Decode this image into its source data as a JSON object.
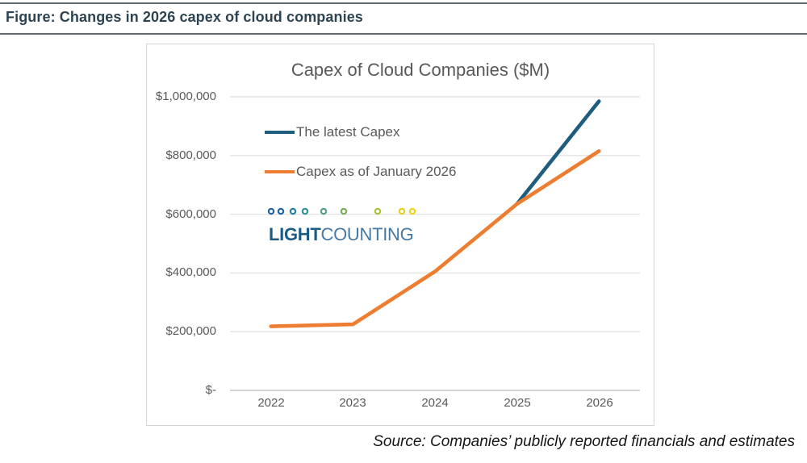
{
  "header": {
    "title": "Figure: Changes in 2026 capex of cloud companies"
  },
  "chart_data": {
    "type": "line",
    "title": "Capex of Cloud Companies ($M)",
    "categories": [
      "2022",
      "2023",
      "2024",
      "2025",
      "2026"
    ],
    "y_tick_labels": [
      "$1,000,000",
      "$800,000",
      "$600,000",
      "$400,000",
      "$200,000",
      "$-"
    ],
    "series": [
      {
        "name": "The latest Capex",
        "color": "#1e5d7d",
        "values": [
          null,
          null,
          null,
          635000,
          985000
        ]
      },
      {
        "name": "Capex as of January 2026",
        "color": "#ed7d31",
        "values": [
          218000,
          225000,
          405000,
          635000,
          815000
        ]
      }
    ],
    "xlabel": "",
    "ylabel": "",
    "ylim": [
      0,
      1000000
    ],
    "ytick_interval": 200000,
    "grid": "horizontal",
    "legend_position": "inside-top-left"
  },
  "logo": {
    "name": "LightCounting",
    "text_bold": "LIGHT",
    "text_regular": "COUNTING",
    "chain_colors": [
      "#2565a4",
      "#2565a4",
      "#2c80a5",
      "#35919d",
      "#55a182",
      "#74ae5e",
      "#aac23d",
      "#e3d125",
      "#efd61b"
    ]
  },
  "footer": {
    "source": "Source: Companies’ publicly reported financials and estimates"
  }
}
